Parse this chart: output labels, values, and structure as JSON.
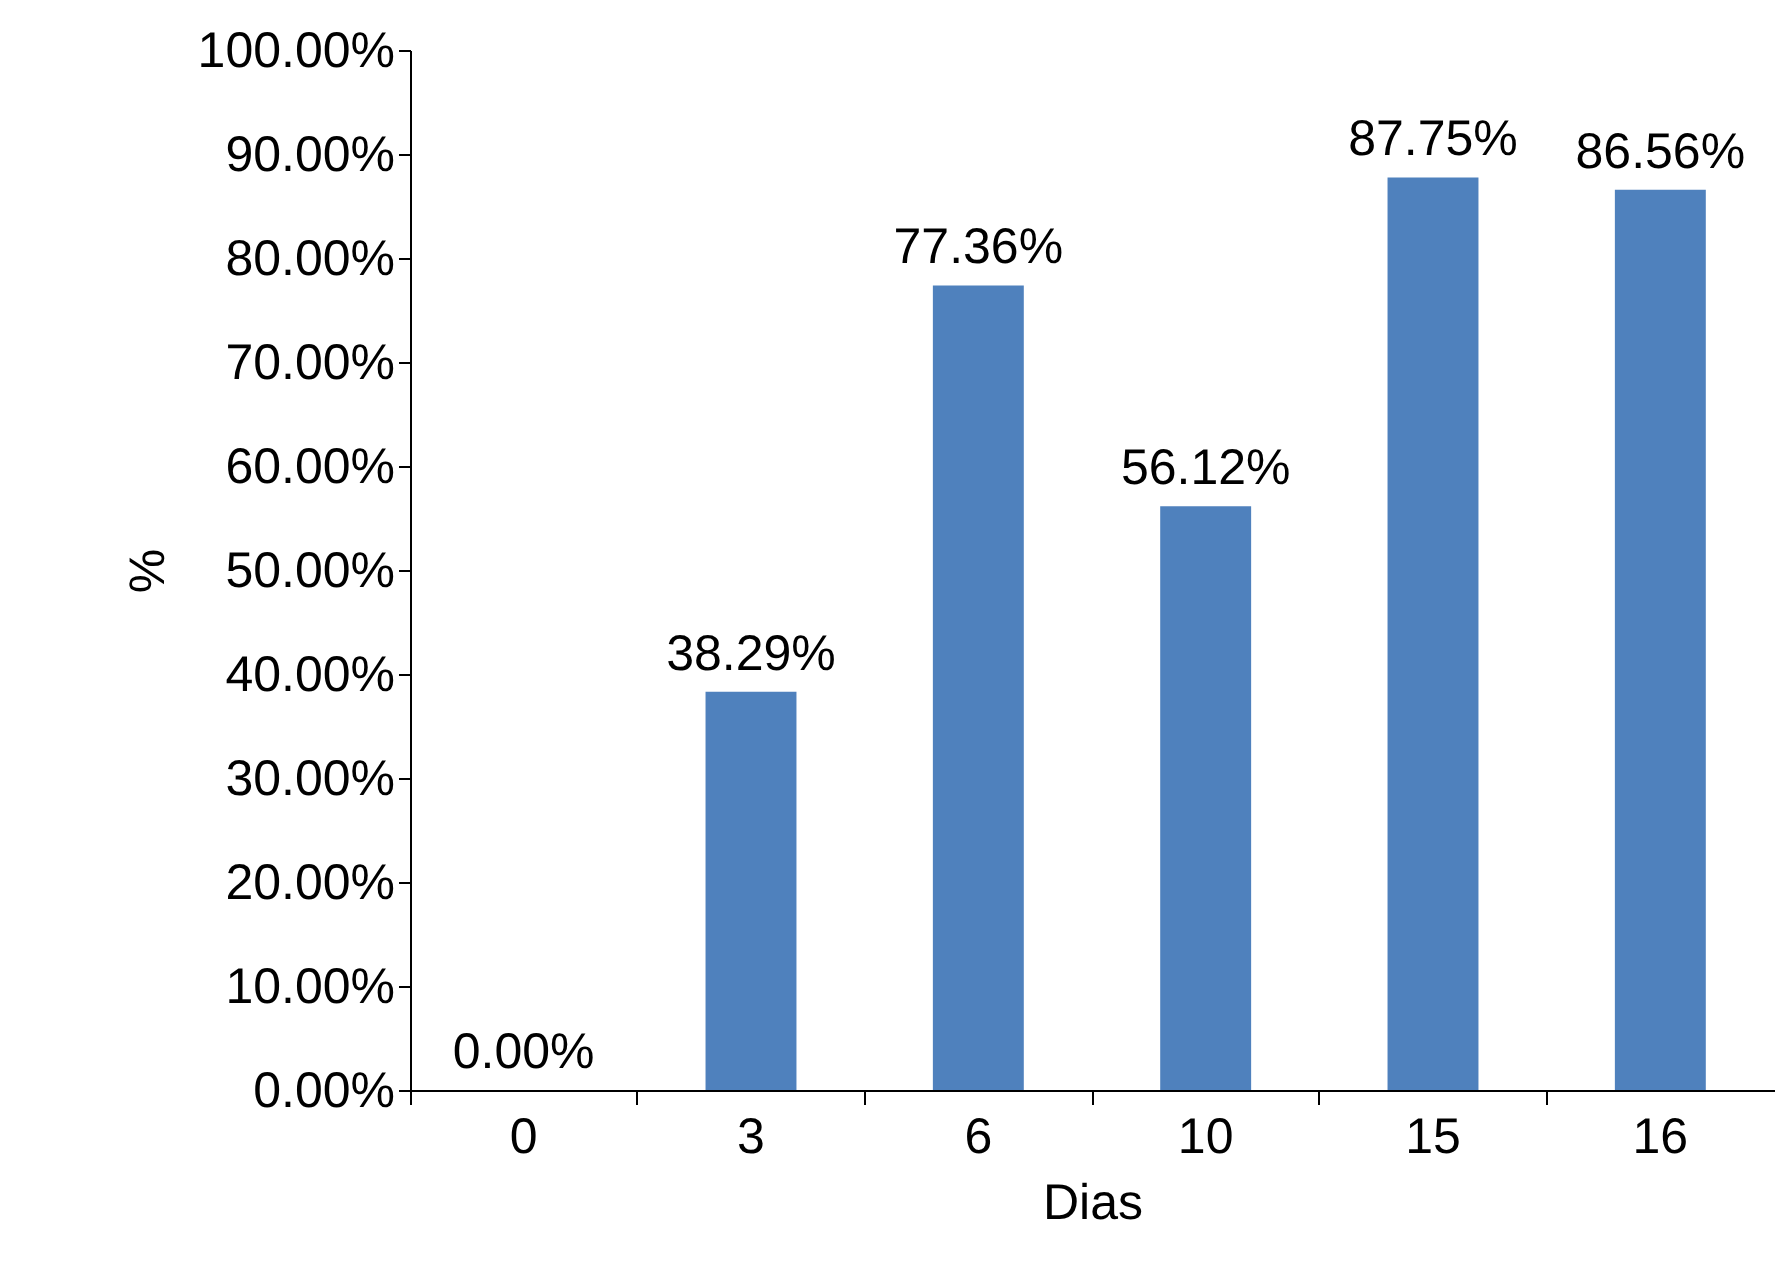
{
  "chart_data": {
    "type": "bar",
    "xlabel": "Dias",
    "ylabel": "%",
    "categories": [
      "0",
      "3",
      "6",
      "10",
      "15",
      "16"
    ],
    "values": [
      0,
      38.29,
      77.36,
      56.12,
      87.75,
      86.56
    ],
    "value_labels": [
      "0.00%",
      "38.29%",
      "77.36%",
      "56.12%",
      "87.75%",
      "86.56%"
    ],
    "color": "#4f81bd",
    "ylim": [
      0,
      100
    ],
    "yticks": [
      {
        "value": 0,
        "label": "0.00%"
      },
      {
        "value": 10,
        "label": "10.00%"
      },
      {
        "value": 20,
        "label": "20.00%"
      },
      {
        "value": 30,
        "label": "30.00%"
      },
      {
        "value": 40,
        "label": "40.00%"
      },
      {
        "value": 50,
        "label": "50.00%"
      },
      {
        "value": 60,
        "label": "60.00%"
      },
      {
        "value": 70,
        "label": "70.00%"
      },
      {
        "value": 80,
        "label": "80.00%"
      },
      {
        "value": 90,
        "label": "90.00%"
      },
      {
        "value": 100,
        "label": "100.00%"
      }
    ],
    "grid": false
  }
}
